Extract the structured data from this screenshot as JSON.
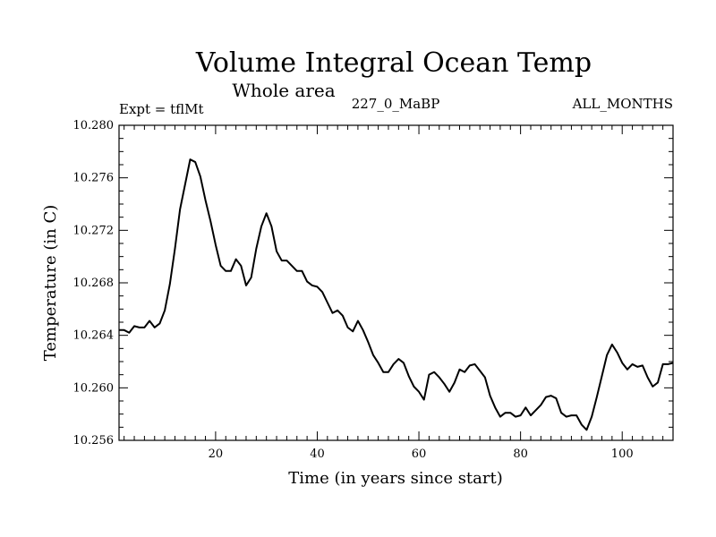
{
  "chart_data": {
    "type": "line",
    "title": "Volume Integral Ocean Temp",
    "subtitle": "Whole area",
    "left_label": "Expt = tflMt",
    "center_label": "227_0_MaBP",
    "right_label": "ALL_MONTHS",
    "xlabel": "Time (in years since start)",
    "ylabel": "Temperature (in C)",
    "xlim": [
      1,
      110
    ],
    "ylim": [
      10.256,
      10.28
    ],
    "xticks": [
      20,
      40,
      60,
      80,
      100
    ],
    "yticks": [
      10.256,
      10.26,
      10.264,
      10.268,
      10.272,
      10.276,
      10.28
    ],
    "ytick_labels": [
      "10.256",
      "10.260",
      "10.264",
      "10.268",
      "10.272",
      "10.276",
      "10.280"
    ],
    "x": [
      1,
      2,
      3,
      4,
      5,
      6,
      7,
      8,
      9,
      10,
      11,
      12,
      13,
      14,
      15,
      16,
      17,
      18,
      19,
      20,
      21,
      22,
      23,
      24,
      25,
      26,
      27,
      28,
      29,
      30,
      31,
      32,
      33,
      34,
      35,
      36,
      37,
      38,
      39,
      40,
      41,
      42,
      43,
      44,
      45,
      46,
      47,
      48,
      49,
      50,
      51,
      52,
      53,
      54,
      55,
      56,
      57,
      58,
      59,
      60,
      61,
      62,
      63,
      64,
      65,
      66,
      67,
      68,
      69,
      70,
      71,
      72,
      73,
      74,
      75,
      76,
      77,
      78,
      79,
      80,
      81,
      82,
      83,
      84,
      85,
      86,
      87,
      88,
      89,
      90,
      91,
      92,
      93,
      94,
      95,
      96,
      97,
      98,
      99,
      100,
      101,
      102,
      103,
      104,
      105,
      106,
      107,
      108,
      109,
      110
    ],
    "values": [
      10.2644,
      10.2644,
      10.2642,
      10.2647,
      10.2646,
      10.2646,
      10.2651,
      10.2646,
      10.2649,
      10.2659,
      10.2679,
      10.2706,
      10.2736,
      10.2755,
      10.2774,
      10.2772,
      10.2761,
      10.2743,
      10.2727,
      10.2709,
      10.2693,
      10.2689,
      10.2689,
      10.2698,
      10.2693,
      10.2678,
      10.2684,
      10.2706,
      10.2723,
      10.2733,
      10.2723,
      10.2704,
      10.2697,
      10.2697,
      10.2693,
      10.2689,
      10.2689,
      10.2681,
      10.2678,
      10.2677,
      10.2673,
      10.2665,
      10.2657,
      10.2659,
      10.2655,
      10.2646,
      10.2643,
      10.2651,
      10.2644,
      10.2635,
      10.2625,
      10.2619,
      10.2612,
      10.2612,
      10.2618,
      10.2622,
      10.2619,
      10.2609,
      10.2601,
      10.2597,
      10.2591,
      10.261,
      10.2612,
      10.2608,
      10.2603,
      10.2597,
      10.2604,
      10.2614,
      10.2612,
      10.2617,
      10.2618,
      10.2613,
      10.2608,
      10.2594,
      10.2585,
      10.2578,
      10.2581,
      10.2581,
      10.2578,
      10.2579,
      10.2585,
      10.2579,
      10.2583,
      10.2587,
      10.2593,
      10.2594,
      10.2592,
      10.2581,
      10.2578,
      10.2579,
      10.2579,
      10.2572,
      10.2568,
      10.2578,
      10.2593,
      10.2609,
      10.2625,
      10.2633,
      10.2627,
      10.2619,
      10.2614,
      10.2618,
      10.2616,
      10.2617,
      10.2608,
      10.2601,
      10.2604,
      10.2618,
      10.2618,
      10.2619
    ]
  }
}
